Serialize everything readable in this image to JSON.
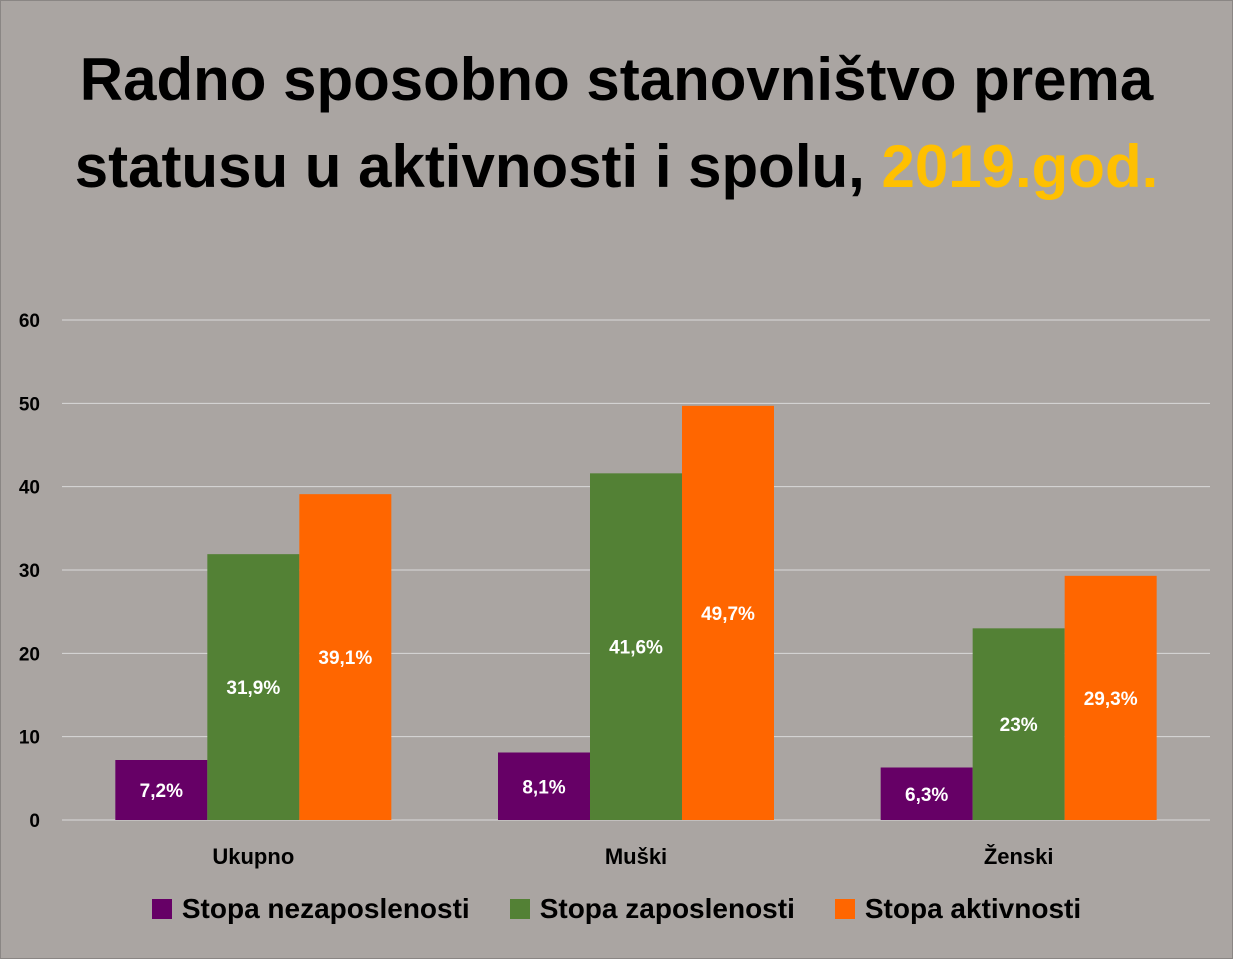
{
  "chart_data": {
    "type": "bar",
    "title_main": "Radno sposobno stanovništvo prema statusu u aktivnosti i spolu,",
    "title_accent": "2019.god.",
    "categories": [
      "Ukupno",
      "Muški",
      "Ženski"
    ],
    "series": [
      {
        "name": "Stopa nezaposlenosti",
        "values": [
          7.2,
          8.1,
          6.3
        ],
        "labels": [
          "7,2%",
          "8,1%",
          "6,3%"
        ],
        "color": "#660066"
      },
      {
        "name": "Stopa zaposlenosti",
        "values": [
          31.9,
          41.6,
          23
        ],
        "labels": [
          "31,9%",
          "41,6%",
          "23%"
        ],
        "color": "#538135"
      },
      {
        "name": "Stopa aktivnosti",
        "values": [
          39.1,
          49.7,
          29.3
        ],
        "labels": [
          "39,1%",
          "49,7%",
          "29,3%"
        ],
        "color": "#ff6600"
      }
    ],
    "yticks": [
      "0",
      "10",
      "20",
      "30",
      "40",
      "50",
      "60"
    ],
    "ylim": [
      0,
      60
    ],
    "grid": true,
    "legend_position": "bottom",
    "colors": {
      "background": "#aaa5a2",
      "title_accent": "#ffc000",
      "grid": "#d9d9d9"
    }
  }
}
